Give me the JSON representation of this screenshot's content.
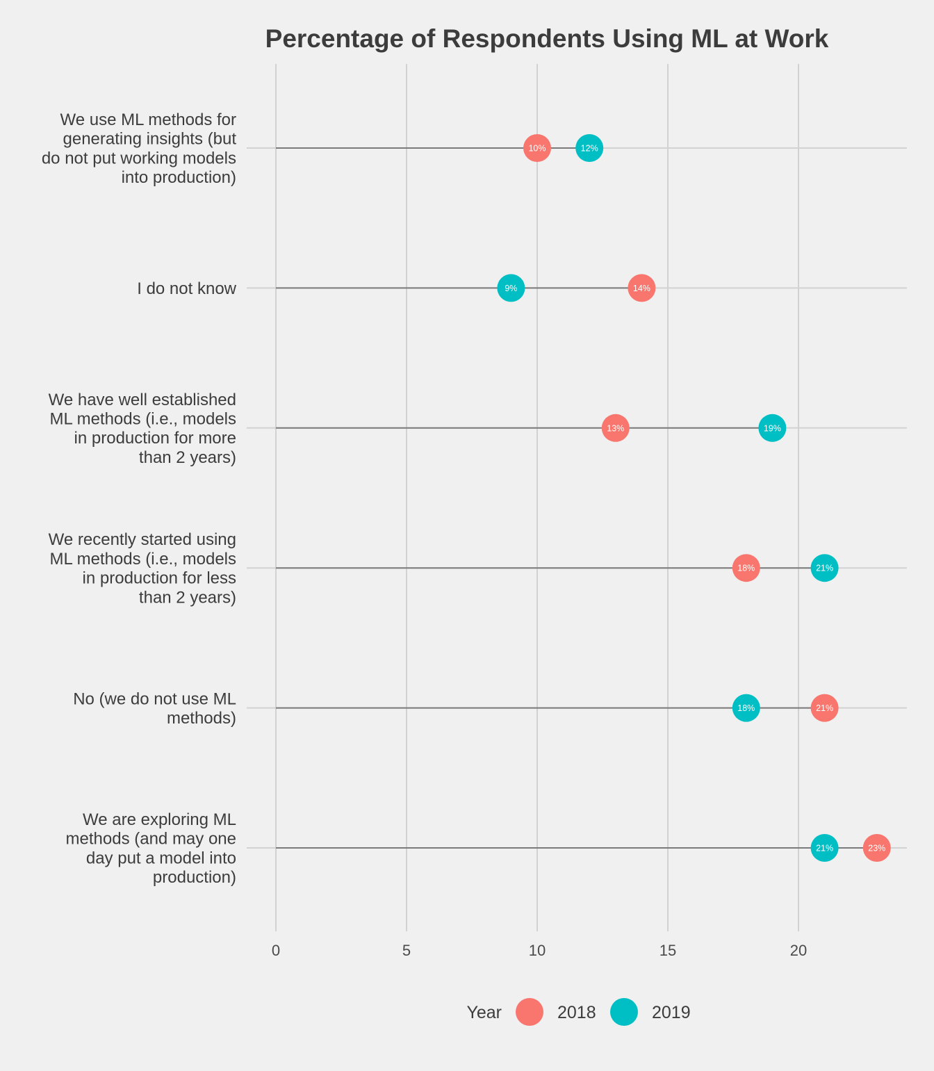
{
  "chart_data": {
    "type": "dumbbell",
    "title": "Percentage of Respondents Using ML at Work",
    "xlabel": "",
    "ylabel": "",
    "xlim": [
      0,
      24
    ],
    "xticks": [
      0,
      5,
      10,
      15,
      20
    ],
    "grid": true,
    "categories": [
      "We use ML methods for generating insights (but do not put working models into production)",
      "I do not know",
      "We have well established ML methods (i.e., models in production for more than 2 years)",
      "We recently started using ML methods (i.e., models in production for less than 2 years)",
      "No (we do not use ML methods)",
      "We are exploring ML methods (and may one day put a model into production)"
    ],
    "category_lines": [
      [
        "We use ML methods for",
        "generating insights (but",
        "do not put working models",
        "into production)"
      ],
      [
        "I do not know"
      ],
      [
        "We have well established",
        "ML methods (i.e., models",
        "in production for more",
        "than 2 years)"
      ],
      [
        "We recently started using",
        "ML methods (i.e., models",
        "in production for less",
        "than 2 years)"
      ],
      [
        "No (we do not use ML",
        "methods)"
      ],
      [
        "We are exploring ML",
        "methods (and may one",
        "day put a model into",
        "production)"
      ]
    ],
    "series": [
      {
        "name": "2018",
        "color": "#f8766d",
        "values": [
          10,
          14,
          13,
          18,
          21,
          23
        ],
        "labels": [
          "10%",
          "14%",
          "13%",
          "18%",
          "21%",
          "23%"
        ]
      },
      {
        "name": "2019",
        "color": "#00bfc4",
        "values": [
          12,
          9,
          19,
          21,
          18,
          21
        ],
        "labels": [
          "12%",
          "9%",
          "19%",
          "21%",
          "18%",
          "21%"
        ]
      }
    ],
    "legend": {
      "title": "Year",
      "position": "bottom"
    }
  }
}
